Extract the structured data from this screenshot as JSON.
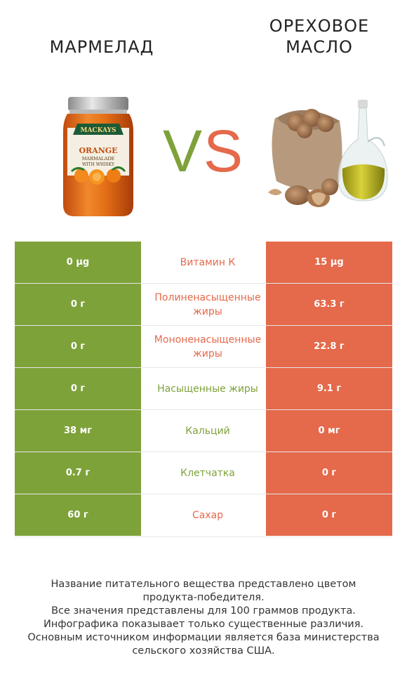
{
  "header": {
    "left_title": "МАРМЕЛАД",
    "right_title_line1": "ОРЕХОВОЕ",
    "right_title_line2": "МАСЛО",
    "vs_v": "V",
    "vs_s": "S"
  },
  "jar_label": {
    "brand": "MACKAYS",
    "line1": "ORANGE",
    "line2": "MARMALADE",
    "line3": "WITH WHISKY"
  },
  "colors": {
    "left_winner": "#7ea23a",
    "right_winner": "#e5694b"
  },
  "rows": [
    {
      "left": "0 µg",
      "label": "Витамин К",
      "right": "15 µg",
      "winner": "right"
    },
    {
      "left": "0 г",
      "label": "Полиненасыщенные жиры",
      "right": "63.3 г",
      "winner": "right"
    },
    {
      "left": "0 г",
      "label": "Мононенасыщенные жиры",
      "right": "22.8 г",
      "winner": "right"
    },
    {
      "left": "0 г",
      "label": "Насыщенные жиры",
      "right": "9.1 г",
      "winner": "left"
    },
    {
      "left": "38 мг",
      "label": "Кальций",
      "right": "0 мг",
      "winner": "left"
    },
    {
      "left": "0.7 г",
      "label": "Клетчатка",
      "right": "0 г",
      "winner": "left"
    },
    {
      "left": "60 г",
      "label": "Сахар",
      "right": "0 г",
      "winner": "right"
    }
  ],
  "footer": {
    "line1": "Название питательного вещества представлено цветом",
    "line2": "продукта-победителя.",
    "line3": "Все значения представлены для 100 граммов продукта.",
    "line4": "Инфографика показывает только существенные различия.",
    "line5": "Основным источником информации является база министерства",
    "line6": "сельского хозяйства США."
  }
}
